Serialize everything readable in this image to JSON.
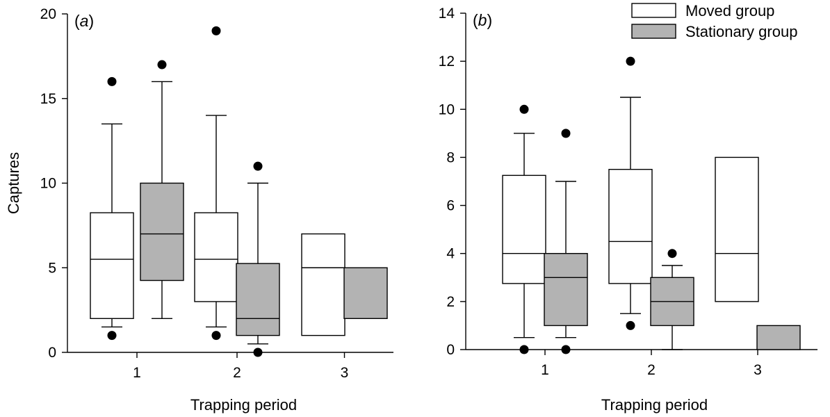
{
  "chart_data": [
    {
      "type": "boxplot",
      "panel_label": "a",
      "xlabel": "Trapping period",
      "ylabel": "Captures",
      "categories": [
        "1",
        "2",
        "3"
      ],
      "ylim": [
        0,
        20
      ],
      "yticks": [
        "0",
        "5",
        "10",
        "15",
        "20"
      ],
      "series": [
        {
          "name": "Moved group",
          "color": "#ffffff",
          "boxes": [
            {
              "category": "1",
              "whisker_low": 1.5,
              "q1": 2,
              "median": 5.5,
              "q3": 8.25,
              "whisker_high": 13.5,
              "outliers": [
                1,
                16
              ]
            },
            {
              "category": "2",
              "whisker_low": 1.5,
              "q1": 3,
              "median": 5.5,
              "q3": 8.25,
              "whisker_high": 14,
              "outliers": [
                1,
                19
              ]
            },
            {
              "category": "3",
              "whisker_low": null,
              "q1": 1,
              "median": 5,
              "q3": 7,
              "whisker_high": null,
              "outliers": []
            }
          ]
        },
        {
          "name": "Stationary group",
          "color": "#b3b3b3",
          "boxes": [
            {
              "category": "1",
              "whisker_low": 2,
              "q1": 4.25,
              "median": 7,
              "q3": 10,
              "whisker_high": 16,
              "outliers": [
                17
              ]
            },
            {
              "category": "2",
              "whisker_low": 0.5,
              "q1": 1,
              "median": 2,
              "q3": 5.25,
              "whisker_high": 10,
              "outliers": [
                0,
                11
              ]
            },
            {
              "category": "3",
              "whisker_low": null,
              "q1": 2,
              "median": 5,
              "q3": 5,
              "whisker_high": null,
              "outliers": []
            }
          ]
        }
      ]
    },
    {
      "type": "boxplot",
      "panel_label": "b",
      "xlabel": "Trapping period",
      "ylabel": "",
      "categories": [
        "1",
        "2",
        "3"
      ],
      "ylim": [
        0,
        14
      ],
      "yticks": [
        "0",
        "2",
        "4",
        "6",
        "8",
        "10",
        "12",
        "14"
      ],
      "series": [
        {
          "name": "Moved group",
          "color": "#ffffff",
          "boxes": [
            {
              "category": "1",
              "whisker_low": 0.5,
              "q1": 2.75,
              "median": 4,
              "q3": 7.25,
              "whisker_high": 9,
              "outliers": [
                0,
                10
              ]
            },
            {
              "category": "2",
              "whisker_low": 1.5,
              "q1": 2.75,
              "median": 4.5,
              "q3": 7.5,
              "whisker_high": 10.5,
              "outliers": [
                1,
                12
              ]
            },
            {
              "category": "3",
              "whisker_low": null,
              "q1": 2,
              "median": 4,
              "q3": 8,
              "whisker_high": null,
              "outliers": []
            }
          ]
        },
        {
          "name": "Stationary group",
          "color": "#b3b3b3",
          "boxes": [
            {
              "category": "1",
              "whisker_low": 0.5,
              "q1": 1,
              "median": 3,
              "q3": 4,
              "whisker_high": 7,
              "outliers": [
                0,
                9
              ]
            },
            {
              "category": "2",
              "whisker_low": 0,
              "q1": 1,
              "median": 2,
              "q3": 3,
              "whisker_high": 3.5,
              "outliers": [
                4
              ]
            },
            {
              "category": "3",
              "whisker_low": null,
              "q1": 0,
              "median": 0,
              "q3": 1,
              "whisker_high": null,
              "outliers": []
            }
          ]
        }
      ]
    }
  ],
  "legend": {
    "placement": "top-right",
    "items": [
      {
        "label": "Moved group",
        "color": "#ffffff"
      },
      {
        "label": "Stationary group",
        "color": "#b3b3b3"
      }
    ]
  }
}
